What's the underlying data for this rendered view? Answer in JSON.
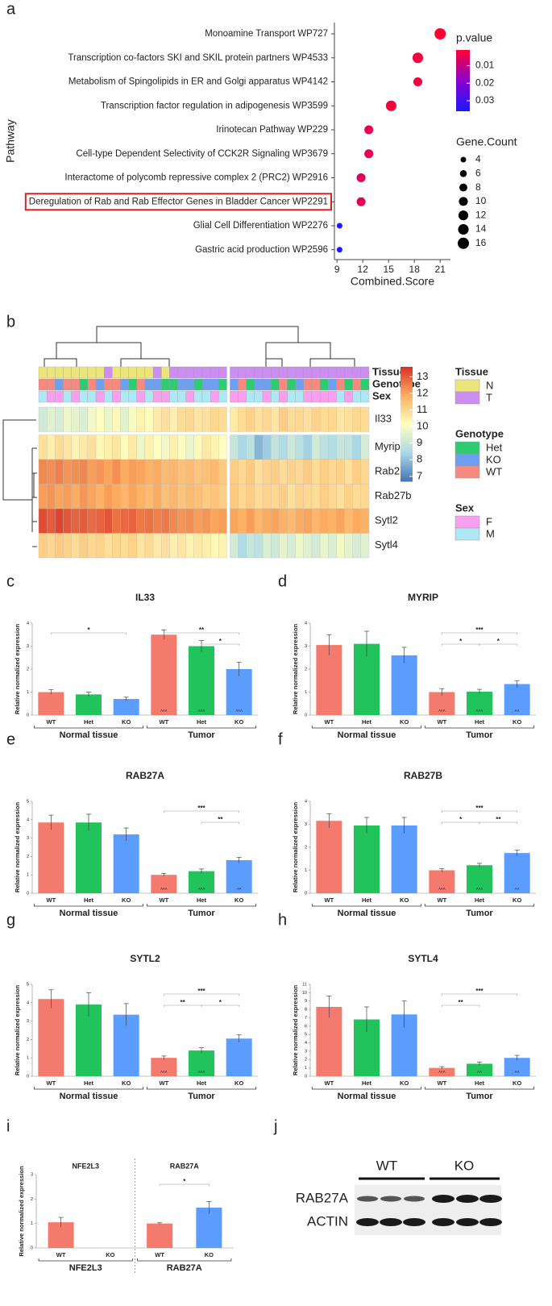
{
  "panel_labels": [
    "a",
    "b",
    "c",
    "d",
    "e",
    "f",
    "g",
    "h",
    "i",
    "j"
  ],
  "chart_data": [
    {
      "type": "scatter",
      "xlabel": "Combined.Score",
      "ylabel": "Pathway",
      "categories": [
        "Monoamine Transport WP727",
        "Transcription co-factors SKI and SKIL protein partners WP4533",
        "Metabolism of Spingolipids in ER and Golgi apparatus WP4142",
        "Transcription factor regulation in adipogenesis WP3599",
        "Irinotecan Pathway WP229",
        "Cell-type Dependent Selectivity of CCK2R Signaling WP3679",
        "Interactome of polycomb repressive complex 2 (PRC2)  WP2916",
        "Deregulation of Rab and Rab Effector Genes in Bladder Cancer WP2291",
        "Glial Cell Differentiation WP2276",
        "Gastric acid production WP2596"
      ],
      "values": [
        21.0,
        18.4,
        18.4,
        15.3,
        12.7,
        12.7,
        11.8,
        11.8,
        9.3,
        9.3
      ],
      "pvalues": [
        0.001,
        0.002,
        0.003,
        0.002,
        0.004,
        0.004,
        0.005,
        0.005,
        0.036,
        0.036
      ],
      "sizes": [
        16,
        14,
        10,
        14,
        10,
        10,
        10,
        10,
        4,
        4
      ],
      "xlim": [
        8.7,
        22.2
      ],
      "xticks": [
        9,
        12,
        15,
        18,
        21
      ],
      "color_legend": {
        "title": "p.value",
        "lim": [
          0.001,
          0.036
        ],
        "ticks": [
          0.01,
          0.02,
          0.03
        ],
        "colors": [
          "#ff0033",
          "#8a00cc",
          "#1a1aff"
        ]
      },
      "size_legend": {
        "title": "Gene.Count",
        "values": [
          4,
          6,
          8,
          10,
          12,
          14,
          16
        ]
      },
      "highlight_index": 7,
      "highlight_color": "#e02020"
    },
    {
      "type": "heatmap",
      "rows": [
        "Il33",
        "Myrip",
        "Rab27a",
        "Rab27b",
        "Sytl2",
        "Sytl4"
      ],
      "values": [
        [
          9.2,
          9.5,
          9.3,
          9.8,
          9.6,
          9.4,
          9.9,
          10.1,
          9.7,
          10.3,
          9.5,
          10.0,
          10.4,
          10.2,
          10.6,
          10.8,
          10.5,
          10.9,
          11.0,
          10.7,
          10.8,
          11.0,
          10.9,
          10.6,
          10.9,
          11.1,
          10.8,
          11.0,
          10.7,
          11.2,
          10.9,
          11.0,
          10.8,
          11.1,
          10.9,
          11.0,
          10.7,
          10.8,
          11.0,
          10.9
        ],
        [
          10.8,
          10.5,
          10.9,
          10.7,
          10.4,
          10.6,
          10.8,
          10.3,
          10.5,
          10.7,
          10.2,
          10.6,
          9.8,
          10.4,
          10.1,
          9.9,
          10.5,
          10.2,
          9.7,
          10.3,
          10.6,
          10.4,
          10.1,
          9.0,
          8.4,
          8.8,
          7.8,
          8.2,
          8.9,
          8.5,
          9.1,
          8.7,
          8.3,
          9.2,
          8.8,
          8.6,
          9.0,
          8.9,
          8.4,
          9.3
        ],
        [
          12.4,
          12.3,
          12.5,
          12.2,
          12.3,
          12.4,
          12.1,
          12.2,
          12.0,
          12.3,
          11.9,
          12.1,
          12.0,
          11.8,
          11.9,
          11.6,
          11.7,
          11.5,
          11.6,
          11.4,
          11.5,
          11.6,
          11.3,
          11.2,
          11.0,
          11.3,
          10.8,
          11.1,
          11.2,
          10.9,
          11.1,
          11.0,
          11.3,
          10.9,
          11.2,
          11.0,
          11.1,
          10.8,
          11.2,
          11.0
        ],
        [
          12.1,
          12.2,
          12.0,
          12.1,
          11.9,
          12.2,
          12.0,
          11.8,
          12.1,
          11.9,
          11.7,
          12.0,
          11.8,
          11.6,
          11.9,
          11.5,
          11.7,
          11.4,
          11.6,
          11.5,
          11.3,
          11.4,
          11.2,
          11.3,
          11.0,
          11.2,
          10.9,
          11.1,
          11.0,
          11.2,
          10.8,
          11.1,
          11.0,
          10.9,
          11.2,
          11.0,
          10.8,
          11.1,
          10.9,
          11.0
        ],
        [
          13.2,
          13.0,
          13.3,
          13.1,
          12.9,
          13.0,
          12.8,
          12.9,
          13.1,
          12.7,
          12.8,
          12.9,
          12.6,
          12.7,
          12.5,
          12.6,
          12.4,
          12.2,
          12.3,
          12.1,
          12.2,
          12.0,
          12.1,
          12.0,
          11.8,
          12.1,
          11.7,
          11.9,
          12.0,
          11.8,
          11.6,
          11.9,
          12.0,
          11.7,
          11.9,
          11.8,
          12.0,
          11.6,
          11.9,
          11.8
        ],
        [
          11.2,
          11.0,
          11.3,
          11.1,
          10.9,
          11.2,
          11.0,
          11.1,
          10.8,
          11.0,
          10.9,
          11.1,
          10.7,
          10.9,
          10.6,
          10.8,
          10.5,
          10.7,
          10.4,
          10.6,
          10.5,
          10.3,
          10.4,
          9.2,
          8.5,
          9.0,
          8.8,
          9.4,
          9.1,
          9.6,
          9.3,
          9.8,
          9.5,
          9.2,
          9.7,
          9.4,
          9.9,
          9.6,
          9.3,
          9.5
        ]
      ],
      "column_split": 23,
      "row_split": 1,
      "clim": [
        6.7,
        13.6
      ],
      "cticks": [
        7,
        8,
        9,
        10,
        11,
        12,
        13
      ],
      "colors": [
        "#4575b4",
        "#abd9e9",
        "#ffffbf",
        "#fdae61",
        "#d73027"
      ],
      "annotations": [
        {
          "name": "Tissue",
          "levels": [
            "N",
            "T"
          ],
          "colors": [
            "#ece67a",
            "#cc8ef0"
          ],
          "values": [
            "N",
            "N",
            "N",
            "N",
            "N",
            "N",
            "N",
            "N",
            "T",
            "N",
            "N",
            "N",
            "N",
            "N",
            "T",
            "N",
            "T",
            "T",
            "T",
            "T",
            "T",
            "T",
            "T",
            "T",
            "T",
            "T",
            "T",
            "T",
            "T",
            "T",
            "T",
            "T",
            "T",
            "T",
            "T",
            "T",
            "T",
            "T",
            "T",
            "T"
          ]
        },
        {
          "name": "Genotype",
          "levels": [
            "Het",
            "KO",
            "WT"
          ],
          "colors": [
            "#2ecc71",
            "#6f9ff0",
            "#f48a80"
          ],
          "values": [
            "WT",
            "WT",
            "KO",
            "WT",
            "WT",
            "Het",
            "WT",
            "KO",
            "WT",
            "WT",
            "KO",
            "Het",
            "WT",
            "KO",
            "KO",
            "Het",
            "Het",
            "KO",
            "KO",
            "Het",
            "KO",
            "KO",
            "Het",
            "KO",
            "WT",
            "Het",
            "KO",
            "KO",
            "Het",
            "WT",
            "Het",
            "KO",
            "WT",
            "WT",
            "Het",
            "KO",
            "WT",
            "Het",
            "WT",
            "Het"
          ]
        },
        {
          "name": "Sex",
          "levels": [
            "F",
            "M"
          ],
          "colors": [
            "#f8a0ee",
            "#aee8f5"
          ],
          "values": [
            "M",
            "F",
            "F",
            "M",
            "F",
            "M",
            "M",
            "F",
            "M",
            "F",
            "M",
            "M",
            "F",
            "M",
            "F",
            "F",
            "M",
            "M",
            "F",
            "M",
            "M",
            "F",
            "M",
            "F",
            "F",
            "M",
            "M",
            "F",
            "M",
            "F",
            "M",
            "M",
            "F",
            "F",
            "F",
            "F",
            "M",
            "F",
            "M",
            "M"
          ]
        }
      ]
    },
    {
      "type": "bar",
      "title": "IL33",
      "ylabel": "Relative normalized expression",
      "categories": [
        "WT",
        "Het",
        "KO",
        "WT",
        "Het",
        "KO"
      ],
      "values": [
        1.0,
        0.9,
        0.7,
        3.5,
        3.0,
        2.0
      ],
      "errors": [
        0.1,
        0.1,
        0.08,
        0.2,
        0.25,
        0.3
      ],
      "colors": [
        "#f47a6e",
        "#21c45a",
        "#5b9cff",
        "#f47a6e",
        "#21c45a",
        "#5b9cff"
      ],
      "groups": [
        {
          "label": "Normal tissue",
          "from": 0,
          "to": 2
        },
        {
          "label": "Tumor",
          "from": 3,
          "to": 5
        }
      ],
      "ylim": [
        0,
        4
      ],
      "yticks": [
        0,
        1,
        2,
        3,
        4
      ],
      "brackets": [
        {
          "from": 0,
          "to": 2,
          "label": "*"
        },
        {
          "from": 3,
          "to": 5,
          "label": "**"
        },
        {
          "from": 4,
          "to": 5,
          "label": "*"
        }
      ],
      "bar_marks": [
        null,
        null,
        null,
        "^^^",
        "^^^",
        "^^^"
      ]
    },
    {
      "type": "bar",
      "title": "MYRIP",
      "ylabel": "Relative normalized expression",
      "categories": [
        "WT",
        "Het",
        "KO",
        "WT",
        "Het",
        "KO"
      ],
      "values": [
        3.05,
        3.1,
        2.6,
        1.0,
        1.02,
        1.35
      ],
      "errors": [
        0.45,
        0.55,
        0.35,
        0.15,
        0.1,
        0.15
      ],
      "colors": [
        "#f47a6e",
        "#21c45a",
        "#5b9cff",
        "#f47a6e",
        "#21c45a",
        "#5b9cff"
      ],
      "groups": [
        {
          "label": "Normal tissue",
          "from": 0,
          "to": 2
        },
        {
          "label": "Tumor",
          "from": 3,
          "to": 5
        }
      ],
      "ylim": [
        0,
        4
      ],
      "yticks": [
        0,
        1,
        2,
        3,
        4
      ],
      "brackets": [
        {
          "from": 3,
          "to": 5,
          "label": "***"
        },
        {
          "from": 3,
          "to": 4,
          "label": "*"
        },
        {
          "from": 4,
          "to": 5,
          "label": "*"
        }
      ],
      "bar_marks": [
        null,
        null,
        null,
        "^^^",
        "^^^",
        "^^"
      ]
    },
    {
      "type": "bar",
      "title": "RAB27A",
      "ylabel": "Relative normalized expression",
      "categories": [
        "WT",
        "Het",
        "KO",
        "WT",
        "Het",
        "KO"
      ],
      "values": [
        3.85,
        3.85,
        3.2,
        1.0,
        1.2,
        1.8
      ],
      "errors": [
        0.4,
        0.45,
        0.35,
        0.08,
        0.12,
        0.15
      ],
      "colors": [
        "#f47a6e",
        "#21c45a",
        "#5b9cff",
        "#f47a6e",
        "#21c45a",
        "#5b9cff"
      ],
      "groups": [
        {
          "label": "Normal tissue",
          "from": 0,
          "to": 2
        },
        {
          "label": "Tumor",
          "from": 3,
          "to": 5
        }
      ],
      "ylim": [
        0,
        5
      ],
      "yticks": [
        0,
        1,
        2,
        3,
        4,
        5
      ],
      "brackets": [
        {
          "from": 3,
          "to": 5,
          "label": "***"
        },
        {
          "from": 4,
          "to": 5,
          "label": "**"
        }
      ],
      "bar_marks": [
        null,
        null,
        null,
        "^^^",
        "^^^",
        "^^"
      ]
    },
    {
      "type": "bar",
      "title": "RAB27B",
      "ylabel": "Relative normalized expression",
      "categories": [
        "WT",
        "Het",
        "KO",
        "WT",
        "Het",
        "KO"
      ],
      "values": [
        3.15,
        2.95,
        2.95,
        1.0,
        1.22,
        1.75
      ],
      "errors": [
        0.3,
        0.35,
        0.35,
        0.07,
        0.08,
        0.12
      ],
      "colors": [
        "#f47a6e",
        "#21c45a",
        "#5b9cff",
        "#f47a6e",
        "#21c45a",
        "#5b9cff"
      ],
      "groups": [
        {
          "label": "Normal tissue",
          "from": 0,
          "to": 2
        },
        {
          "label": "Tumor",
          "from": 3,
          "to": 5
        }
      ],
      "ylim": [
        0,
        4
      ],
      "yticks": [
        0,
        1,
        2,
        3,
        4
      ],
      "brackets": [
        {
          "from": 3,
          "to": 5,
          "label": "***"
        },
        {
          "from": 3,
          "to": 4,
          "label": "*"
        },
        {
          "from": 4,
          "to": 5,
          "label": "**"
        }
      ],
      "bar_marks": [
        null,
        null,
        null,
        "^^^",
        "^^^",
        "^^"
      ]
    },
    {
      "type": "bar",
      "title": "SYTL2",
      "ylabel": "Relative normalized expression",
      "categories": [
        "WT",
        "Het",
        "KO",
        "WT",
        "Het",
        "KO"
      ],
      "values": [
        4.2,
        3.9,
        3.35,
        1.0,
        1.4,
        2.05
      ],
      "errors": [
        0.5,
        0.65,
        0.6,
        0.1,
        0.15,
        0.2
      ],
      "colors": [
        "#f47a6e",
        "#21c45a",
        "#5b9cff",
        "#f47a6e",
        "#21c45a",
        "#5b9cff"
      ],
      "groups": [
        {
          "label": "Normal tissue",
          "from": 0,
          "to": 2
        },
        {
          "label": "Tumor",
          "from": 3,
          "to": 5
        }
      ],
      "ylim": [
        0,
        5
      ],
      "yticks": [
        0,
        1,
        2,
        3,
        4,
        5
      ],
      "brackets": [
        {
          "from": 3,
          "to": 5,
          "label": "***"
        },
        {
          "from": 3,
          "to": 4,
          "label": "**"
        },
        {
          "from": 4,
          "to": 5,
          "label": "*"
        }
      ],
      "bar_marks": [
        null,
        null,
        null,
        "^^^",
        "^^^",
        null
      ]
    },
    {
      "type": "bar",
      "title": "SYTL4",
      "ylabel": "Relative normalized expression",
      "categories": [
        "WT",
        "Het",
        "KO",
        "WT",
        "Het",
        "KO"
      ],
      "values": [
        8.3,
        6.8,
        7.4,
        1.0,
        1.5,
        2.2
      ],
      "errors": [
        1.3,
        1.5,
        1.6,
        0.15,
        0.2,
        0.3
      ],
      "colors": [
        "#f47a6e",
        "#21c45a",
        "#5b9cff",
        "#f47a6e",
        "#21c45a",
        "#5b9cff"
      ],
      "groups": [
        {
          "label": "Normal tissue",
          "from": 0,
          "to": 2
        },
        {
          "label": "Tumor",
          "from": 3,
          "to": 5
        }
      ],
      "ylim": [
        0,
        11
      ],
      "yticks": [
        0,
        1,
        2,
        3,
        4,
        5,
        6,
        7,
        8,
        9,
        10,
        11
      ],
      "brackets": [
        {
          "from": 3,
          "to": 5,
          "label": "***"
        },
        {
          "from": 3,
          "to": 4,
          "label": "**"
        }
      ],
      "bar_marks": [
        null,
        null,
        null,
        "^^^",
        "^^",
        "^^"
      ]
    },
    {
      "type": "bar",
      "ylabel": "Relative normalized expression",
      "categories": [
        "WT",
        "KO",
        "WT",
        "KO"
      ],
      "values": [
        1.05,
        0,
        1.0,
        1.65
      ],
      "errors": [
        0.2,
        null,
        0.03,
        0.25
      ],
      "colors": [
        "#f47a6e",
        "#5b9cff",
        "#f47a6e",
        "#5b9cff"
      ],
      "groups": [
        {
          "label": "NFE2L3",
          "title": "NFE2L3",
          "from": 0,
          "to": 1
        },
        {
          "label": "RAB27A",
          "title": "RAB27A",
          "from": 2,
          "to": 3
        }
      ],
      "separator": true,
      "ylim": [
        0,
        3
      ],
      "yticks": [
        0,
        1,
        2,
        3
      ],
      "brackets": [
        {
          "from": 2,
          "to": 3,
          "label": "*"
        }
      ]
    }
  ],
  "blot": {
    "lanes": [
      "WT",
      "KO"
    ],
    "rows": [
      "RAB27A",
      "ACTIN"
    ]
  }
}
